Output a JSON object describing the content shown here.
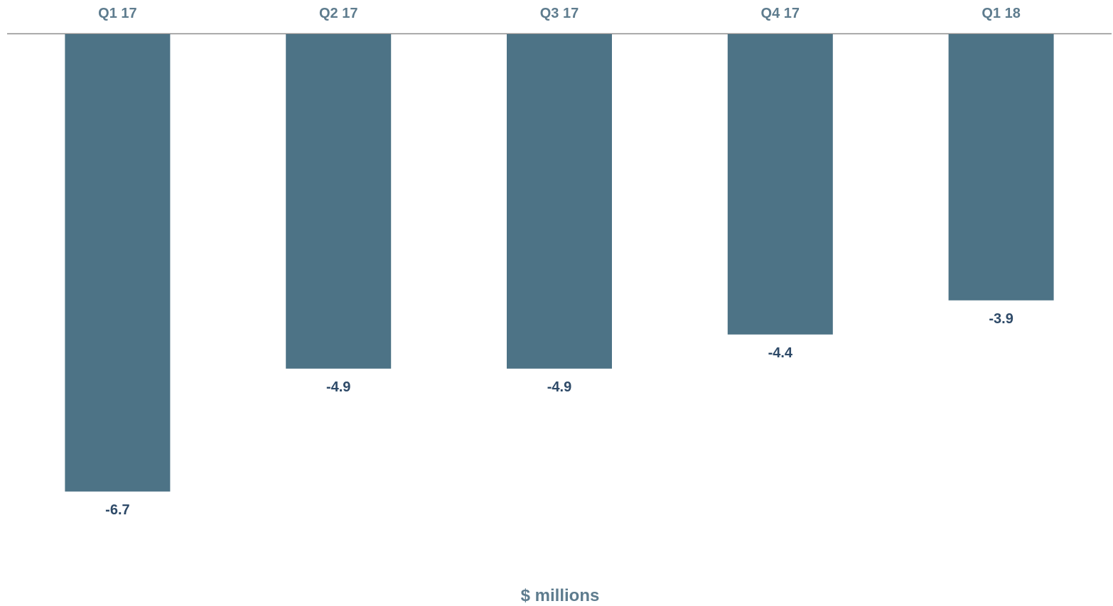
{
  "chart_data": {
    "type": "bar",
    "categories": [
      "Q1 17",
      "Q2 17",
      "Q3 17",
      "Q4 17",
      "Q1 18"
    ],
    "values": [
      -6.7,
      -4.9,
      -4.9,
      -4.4,
      -3.9
    ],
    "data_labels": [
      "-6.7",
      "-4.9",
      "-4.9",
      "-4.4",
      "-3.9"
    ],
    "title": "",
    "xlabel": "$ millions",
    "ylabel": "",
    "ylim": [
      -8,
      0
    ],
    "x_axis_position": "top",
    "grid": false,
    "legend": "none",
    "colors": {
      "bar": "#4d7386",
      "tick_label": "#5e7c8e",
      "data_label": "#2e4a68",
      "axis_title": "#5e7c8e",
      "axis_line": "#8c8c8c"
    }
  }
}
